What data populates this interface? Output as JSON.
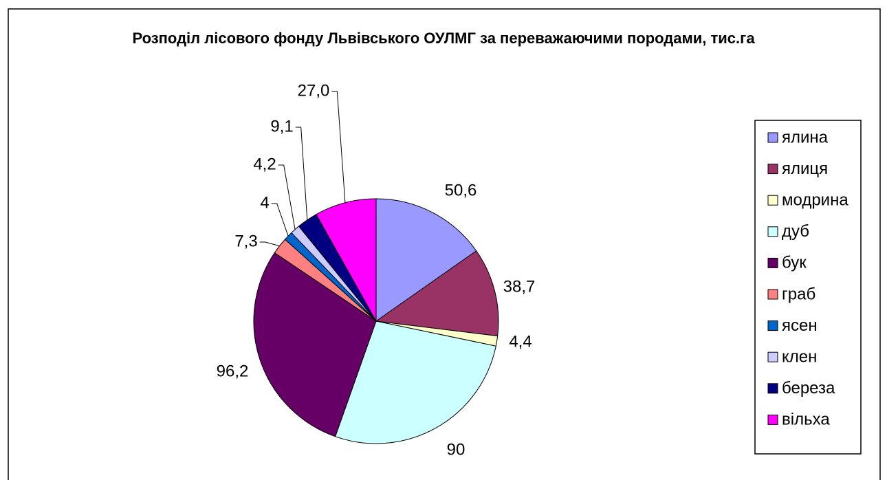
{
  "chart_data": {
    "type": "pie",
    "title": "Розподіл лісового фонду Львівського ОУЛМГ за переважаючими породами, тис.га",
    "categories": [
      "ялина",
      "ялиця",
      "модрина",
      "дуб",
      "бук",
      "граб",
      "ясен",
      "клен",
      "береза",
      "вільха"
    ],
    "values": [
      50.6,
      38.7,
      4.4,
      90,
      96.2,
      7.3,
      4,
      4.2,
      9.1,
      27.0
    ],
    "value_labels": [
      "50,6",
      "38,7",
      "4,4",
      "90",
      "96,2",
      "7,3",
      "4",
      "4,2",
      "9,1",
      "27,0"
    ],
    "colors": [
      "#9999FF",
      "#993366",
      "#FFFFCC",
      "#CCFFFF",
      "#660066",
      "#FF8080",
      "#0066CC",
      "#CCCCFF",
      "#000080",
      "#FF00FF"
    ],
    "legend": "right"
  }
}
